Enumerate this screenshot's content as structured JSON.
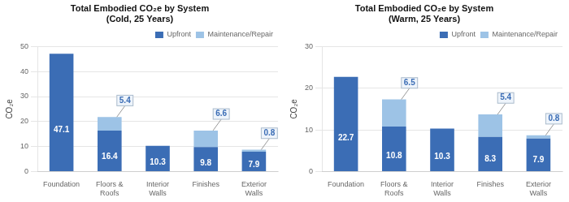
{
  "chart_data": [
    {
      "type": "bar",
      "title": "Total Embodied CO₂e by System\n(Cold, 25 Years)",
      "categories": [
        "Foundation",
        "Floors & Roofs",
        "Interior Walls",
        "Finishes",
        "Exterior Walls"
      ],
      "series": [
        {
          "name": "Upfront",
          "color": "#3B6DB5",
          "values": [
            47.1,
            16.4,
            10.3,
            9.8,
            7.9
          ]
        },
        {
          "name": "Maintenance/Repair",
          "color": "#9DC3E6",
          "values": [
            0.0,
            5.4,
            0.0,
            6.6,
            0.8
          ]
        }
      ],
      "y_label": "CO₂e",
      "ylim": [
        0,
        50
      ],
      "yticks": [
        0,
        10,
        20,
        30,
        40,
        50
      ],
      "stacked": true,
      "grid": true,
      "legend": "upper right",
      "data_labels": true
    },
    {
      "type": "bar",
      "title": "Total Embodied CO₂e by System\n(Warm, 25 Years)",
      "categories": [
        "Foundation",
        "Floors & Roofs",
        "Interior Walls",
        "Finishes",
        "Exterior Walls"
      ],
      "series": [
        {
          "name": "Upfront",
          "color": "#3B6DB5",
          "values": [
            22.7,
            10.8,
            10.3,
            8.3,
            7.9
          ]
        },
        {
          "name": "Maintenance/Repair",
          "color": "#9DC3E6",
          "values": [
            0.0,
            6.5,
            0.0,
            5.4,
            0.8
          ]
        }
      ],
      "y_label": "CO₂e",
      "ylim": [
        0,
        30
      ],
      "yticks": [
        0,
        10,
        20,
        30
      ],
      "stacked": true,
      "grid": true,
      "legend": "upper right",
      "data_labels": true
    }
  ]
}
